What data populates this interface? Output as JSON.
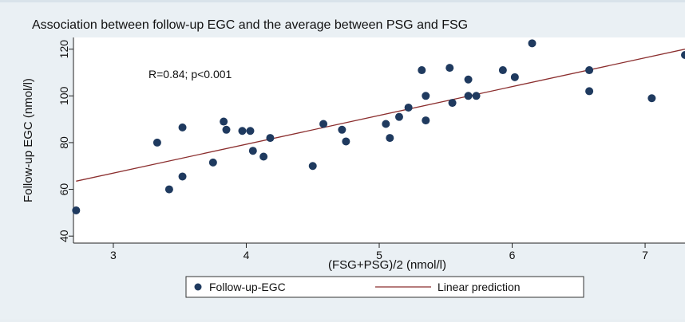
{
  "chart_data": {
    "type": "scatter",
    "title": "Association between follow-up EGC and the average between PSG and FSG",
    "xlabel": "(FSG+PSG)/2 (nmol/l)",
    "ylabel": "Follow-up EGC (nmol/l)",
    "xlim": [
      2.7,
      7.3
    ],
    "ylim": [
      37,
      125
    ],
    "xticks": [
      3,
      4,
      5,
      6,
      7
    ],
    "yticks": [
      40,
      60,
      80,
      100,
      120
    ],
    "annotation": "R=0.84; p<0.001",
    "grid": false,
    "legend_position": "bottom",
    "series": [
      {
        "name": "Follow-up-EGC",
        "kind": "scatter",
        "color": "#1f3a5f",
        "points": [
          [
            2.72,
            51
          ],
          [
            3.33,
            80
          ],
          [
            3.42,
            60
          ],
          [
            3.52,
            86.5
          ],
          [
            3.52,
            65.5
          ],
          [
            3.75,
            71.5
          ],
          [
            3.83,
            89
          ],
          [
            3.85,
            85.5
          ],
          [
            3.97,
            85
          ],
          [
            4.03,
            85
          ],
          [
            4.05,
            76.5
          ],
          [
            4.13,
            74
          ],
          [
            4.18,
            82
          ],
          [
            4.5,
            70
          ],
          [
            4.58,
            88
          ],
          [
            4.72,
            85.5
          ],
          [
            4.75,
            80.5
          ],
          [
            5.05,
            88
          ],
          [
            5.08,
            82
          ],
          [
            5.15,
            91
          ],
          [
            5.22,
            95
          ],
          [
            5.32,
            111
          ],
          [
            5.35,
            100
          ],
          [
            5.35,
            89.5
          ],
          [
            5.53,
            112
          ],
          [
            5.55,
            97
          ],
          [
            5.67,
            107
          ],
          [
            5.67,
            100
          ],
          [
            5.73,
            100
          ],
          [
            5.93,
            111
          ],
          [
            6.02,
            108
          ],
          [
            6.15,
            122.5
          ],
          [
            6.58,
            111
          ],
          [
            6.58,
            102
          ],
          [
            7.05,
            99
          ],
          [
            7.3,
            117.5
          ]
        ]
      },
      {
        "name": "Linear prediction",
        "kind": "line",
        "color": "#8b2e2e",
        "x": [
          2.72,
          7.3
        ],
        "y": [
          63.5,
          120
        ]
      }
    ]
  }
}
